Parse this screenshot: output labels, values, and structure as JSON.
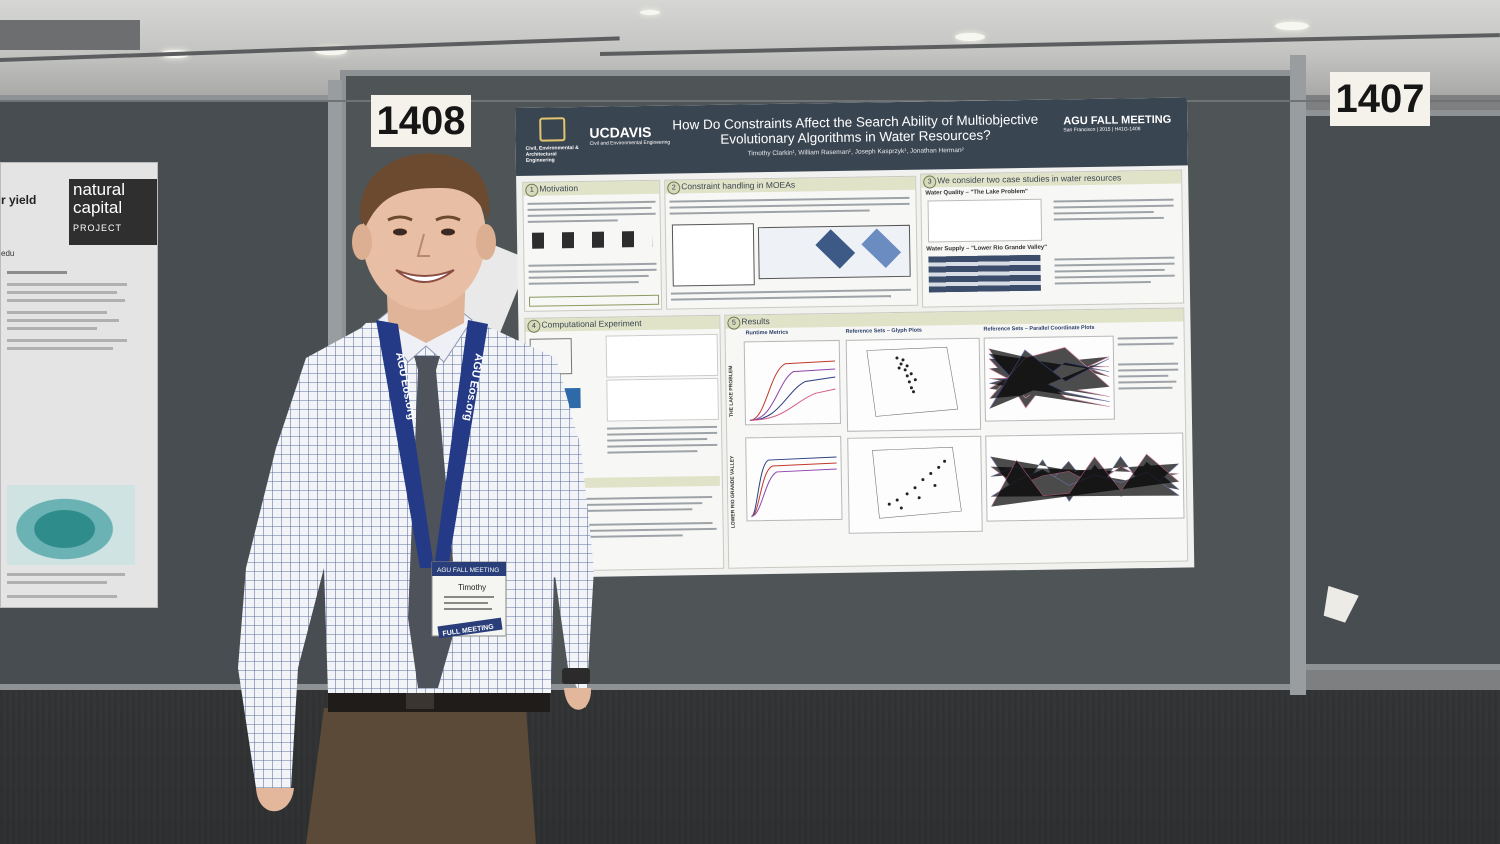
{
  "scene": {
    "description_hidden": "",
    "booth_left_number": "1408",
    "booth_right_number": "1407"
  },
  "left_poster": {
    "fragment_title": "r yield",
    "brand_line1": "natural",
    "brand_line2": "capital",
    "brand_line3": "PROJECT",
    "email_fragment": "edu"
  },
  "poster": {
    "title": "How Do Constraints Affect the Search Ability of Multiobjective Evolutionary Algorithms in Water Resources?",
    "authors": "Timothy Clarkin¹, William Raseman¹, Joseph Kasprzyk¹, Jonathan Herman²",
    "logo_left": "Civil, Environmental & Architectural Engineering",
    "logo_ucdavis": "UCDAVIS",
    "logo_ucdavis_sub": "Civil and Environmental Engineering",
    "logo_agu": "AGU FALL MEETING",
    "agu_sub": "San Francisco | 2015 | H41G-1408",
    "sections": [
      {
        "num": "1",
        "title": "Motivation"
      },
      {
        "num": "2",
        "title": "Constraint handling in MOEAs"
      },
      {
        "num": "3",
        "title": "We consider two case studies in water resources"
      },
      {
        "num": "4",
        "title": "Computational Experiment"
      },
      {
        "num": "5",
        "title": "Results"
      }
    ],
    "sub_lake": "Water Quality – \"The Lake Problem\"",
    "sub_lrgv": "Water Supply – \"Lower Rio Grande Valley\"",
    "sub_runtime": "Runtime Metrics",
    "sub_glyph": "Reference Sets – Glyph Plots",
    "sub_parallel": "Reference Sets – Parallel Coordinate Plots",
    "side_lake": "THE LAKE PROBLEM",
    "side_lrgv": "LOWER RIO GRANDE VALLEY"
  },
  "lanyard": {
    "text": "AGU Eos.org",
    "badge_top": "AGU FALL MEETING",
    "badge_name": "Timothy",
    "badge_bottom": "FULL MEETING"
  }
}
